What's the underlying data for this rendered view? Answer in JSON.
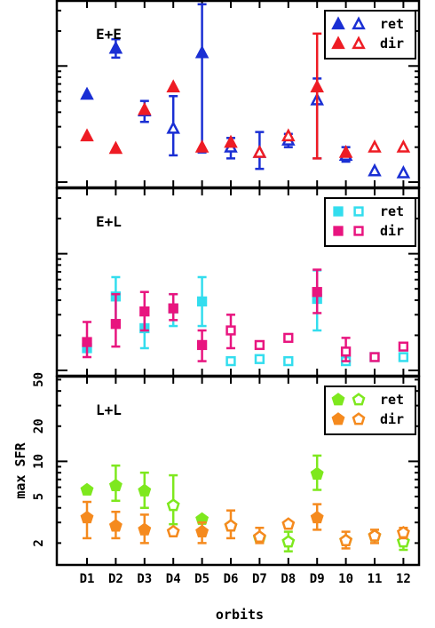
{
  "colors": {
    "ee_ret": "#1a2fd4",
    "ee_dir": "#ee1c24",
    "el_ret": "#33ddee",
    "el_dir": "#e8157f",
    "ll_ret": "#7ee81e",
    "ll_dir": "#f58a1e"
  },
  "chart_data": {
    "type": "scatter",
    "xlabel": "orbits",
    "ylabel": "max SFR",
    "categories": [
      "D1",
      "D2",
      "D3",
      "D4",
      "D5",
      "D6",
      "D7",
      "D8",
      "D9",
      "10",
      "11",
      "12"
    ],
    "y_scale": "log",
    "panels": [
      {
        "title": "E+E",
        "ylim": [
          0.9,
          37
        ],
        "yticks": [],
        "legend": {
          "position": "top-right",
          "entries": [
            "ret",
            "dir"
          ],
          "marker": "triangle"
        },
        "series": [
          {
            "name": "ret",
            "color_key": "ee_ret",
            "points": [
              {
                "x": "D1",
                "y": 5.7,
                "lo": 5.7,
                "hi": 5.7,
                "filled": true
              },
              {
                "x": "D2",
                "y": 14.2,
                "lo": 11.8,
                "hi": 17.0,
                "filled": true
              },
              {
                "x": "D3",
                "y": 4.1,
                "lo": 3.3,
                "hi": 5.0,
                "filled": true
              },
              {
                "x": "D4",
                "y": 2.9,
                "lo": 1.7,
                "hi": 5.5,
                "filled": false
              },
              {
                "x": "D5",
                "y": 13.0,
                "lo": 1.8,
                "hi": 34.0,
                "filled": true
              },
              {
                "x": "D6",
                "y": 2.0,
                "lo": 1.6,
                "hi": 2.4,
                "filled": false
              },
              {
                "x": "D7",
                "y": 1.8,
                "lo": 1.3,
                "hi": 2.7,
                "filled": false
              },
              {
                "x": "D8",
                "y": 2.3,
                "lo": 2.0,
                "hi": 2.6,
                "filled": false
              },
              {
                "x": "D9",
                "y": 5.1,
                "lo": 1.6,
                "hi": 7.8,
                "filled": false
              },
              {
                "x": "10",
                "y": 1.7,
                "lo": 1.5,
                "hi": 2.0,
                "filled": false
              },
              {
                "x": "11",
                "y": 1.25,
                "lo": 1.25,
                "hi": 1.25,
                "filled": false
              },
              {
                "x": "12",
                "y": 1.2,
                "lo": 1.2,
                "hi": 1.2,
                "filled": false
              }
            ]
          },
          {
            "name": "dir",
            "color_key": "ee_dir",
            "points": [
              {
                "x": "D1",
                "y": 2.5,
                "lo": 2.5,
                "hi": 2.5,
                "filled": true
              },
              {
                "x": "D2",
                "y": 1.95,
                "lo": 1.95,
                "hi": 1.95,
                "filled": true
              },
              {
                "x": "D3",
                "y": 4.2,
                "lo": 4.2,
                "hi": 4.2,
                "filled": true
              },
              {
                "x": "D4",
                "y": 6.6,
                "lo": 6.6,
                "hi": 6.6,
                "filled": true
              },
              {
                "x": "D5",
                "y": 2.0,
                "lo": 2.0,
                "hi": 2.0,
                "filled": true
              },
              {
                "x": "D6",
                "y": 2.2,
                "lo": 2.2,
                "hi": 2.2,
                "filled": true
              },
              {
                "x": "D7",
                "y": 1.8,
                "lo": 1.8,
                "hi": 1.8,
                "filled": false
              },
              {
                "x": "D8",
                "y": 2.5,
                "lo": 2.5,
                "hi": 2.5,
                "filled": false
              },
              {
                "x": "D9",
                "y": 6.6,
                "lo": 1.6,
                "hi": 19.0,
                "filled": true
              },
              {
                "x": "10",
                "y": 1.8,
                "lo": 1.8,
                "hi": 1.8,
                "filled": true
              },
              {
                "x": "11",
                "y": 2.0,
                "lo": 2.0,
                "hi": 2.0,
                "filled": false
              },
              {
                "x": "12",
                "y": 2.0,
                "lo": 2.0,
                "hi": 2.0,
                "filled": false
              }
            ]
          }
        ]
      },
      {
        "title": "E+L",
        "ylim": [
          0.9,
          37
        ],
        "yticks": [],
        "legend": {
          "position": "top-right",
          "entries": [
            "ret",
            "dir"
          ],
          "marker": "square"
        },
        "series": [
          {
            "name": "ret",
            "color_key": "el_ret",
            "points": [
              {
                "x": "D1",
                "y": 1.55,
                "lo": 1.55,
                "hi": 1.55,
                "filled": true
              },
              {
                "x": "D2",
                "y": 4.3,
                "lo": 2.7,
                "hi": 6.3,
                "filled": true
              },
              {
                "x": "D3",
                "y": 2.3,
                "lo": 1.55,
                "hi": 3.2,
                "filled": true
              },
              {
                "x": "D4",
                "y": 3.4,
                "lo": 2.4,
                "hi": 4.5,
                "filled": true
              },
              {
                "x": "D5",
                "y": 3.9,
                "lo": 2.4,
                "hi": 6.3,
                "filled": true
              },
              {
                "x": "D6",
                "y": 1.2,
                "lo": 1.2,
                "hi": 1.2,
                "filled": false
              },
              {
                "x": "D7",
                "y": 1.25,
                "lo": 1.25,
                "hi": 1.25,
                "filled": false
              },
              {
                "x": "D8",
                "y": 1.2,
                "lo": 1.2,
                "hi": 1.2,
                "filled": false
              },
              {
                "x": "D9",
                "y": 4.1,
                "lo": 2.2,
                "hi": 7.2,
                "filled": true
              },
              {
                "x": "10",
                "y": 1.2,
                "lo": 1.2,
                "hi": 1.2,
                "filled": false
              },
              {
                "x": "11",
                "y": 1.3,
                "lo": 1.3,
                "hi": 1.3,
                "filled": true
              },
              {
                "x": "12",
                "y": 1.3,
                "lo": 1.3,
                "hi": 1.3,
                "filled": false
              }
            ]
          },
          {
            "name": "dir",
            "color_key": "el_dir",
            "points": [
              {
                "x": "D1",
                "y": 1.75,
                "lo": 1.3,
                "hi": 2.6,
                "filled": true
              },
              {
                "x": "D2",
                "y": 2.5,
                "lo": 1.6,
                "hi": 4.5,
                "filled": true
              },
              {
                "x": "D3",
                "y": 3.2,
                "lo": 2.2,
                "hi": 4.7,
                "filled": true
              },
              {
                "x": "D4",
                "y": 3.4,
                "lo": 2.7,
                "hi": 4.5,
                "filled": true
              },
              {
                "x": "D5",
                "y": 1.65,
                "lo": 1.2,
                "hi": 2.2,
                "filled": true
              },
              {
                "x": "D6",
                "y": 2.2,
                "lo": 1.55,
                "hi": 3.0,
                "filled": false
              },
              {
                "x": "D7",
                "y": 1.65,
                "lo": 1.65,
                "hi": 1.65,
                "filled": false
              },
              {
                "x": "D8",
                "y": 1.9,
                "lo": 1.9,
                "hi": 1.9,
                "filled": false
              },
              {
                "x": "D9",
                "y": 4.7,
                "lo": 3.1,
                "hi": 7.3,
                "filled": true
              },
              {
                "x": "10",
                "y": 1.45,
                "lo": 1.2,
                "hi": 1.9,
                "filled": false
              },
              {
                "x": "11",
                "y": 1.3,
                "lo": 1.3,
                "hi": 1.3,
                "filled": false
              },
              {
                "x": "12",
                "y": 1.6,
                "lo": 1.6,
                "hi": 1.6,
                "filled": false
              }
            ]
          }
        ]
      },
      {
        "title": "L+L",
        "ylim": [
          1.3,
          54
        ],
        "yticks": [
          2,
          5,
          10,
          20,
          50
        ],
        "legend": {
          "position": "top-right",
          "entries": [
            "ret",
            "dir"
          ],
          "marker": "pentagon"
        },
        "series": [
          {
            "name": "ret",
            "color_key": "ll_ret",
            "points": [
              {
                "x": "D1",
                "y": 5.7,
                "lo": 5.7,
                "hi": 5.7,
                "filled": true
              },
              {
                "x": "D2",
                "y": 6.2,
                "lo": 4.6,
                "hi": 9.2,
                "filled": true
              },
              {
                "x": "D3",
                "y": 5.6,
                "lo": 4.0,
                "hi": 8.0,
                "filled": true
              },
              {
                "x": "D4",
                "y": 4.2,
                "lo": 2.9,
                "hi": 7.6,
                "filled": false
              },
              {
                "x": "D5",
                "y": 3.2,
                "lo": 3.2,
                "hi": 3.2,
                "filled": true
              },
              {
                "x": "D6",
                "y": 2.8,
                "lo": 2.8,
                "hi": 2.8,
                "filled": false
              },
              {
                "x": "D7",
                "y": 2.2,
                "lo": 2.2,
                "hi": 2.2,
                "filled": false
              },
              {
                "x": "D8",
                "y": 2.05,
                "lo": 1.7,
                "hi": 2.5,
                "filled": false
              },
              {
                "x": "D9",
                "y": 7.8,
                "lo": 5.7,
                "hi": 11.2,
                "filled": true
              },
              {
                "x": "10",
                "y": 2.1,
                "lo": 2.1,
                "hi": 2.1,
                "filled": false
              },
              {
                "x": "11",
                "y": 2.3,
                "lo": 2.3,
                "hi": 2.3,
                "filled": false
              },
              {
                "x": "12",
                "y": 2.05,
                "lo": 1.75,
                "hi": 2.45,
                "filled": false
              }
            ]
          },
          {
            "name": "dir",
            "color_key": "ll_dir",
            "points": [
              {
                "x": "D1",
                "y": 3.3,
                "lo": 2.2,
                "hi": 4.5,
                "filled": true
              },
              {
                "x": "D2",
                "y": 2.8,
                "lo": 2.2,
                "hi": 3.7,
                "filled": true
              },
              {
                "x": "D3",
                "y": 2.6,
                "lo": 2.0,
                "hi": 3.5,
                "filled": true
              },
              {
                "x": "D4",
                "y": 2.5,
                "lo": 2.5,
                "hi": 2.5,
                "filled": false
              },
              {
                "x": "D5",
                "y": 2.5,
                "lo": 2.0,
                "hi": 3.0,
                "filled": true
              },
              {
                "x": "D6",
                "y": 2.8,
                "lo": 2.2,
                "hi": 3.8,
                "filled": false
              },
              {
                "x": "D7",
                "y": 2.25,
                "lo": 2.0,
                "hi": 2.7,
                "filled": false
              },
              {
                "x": "D8",
                "y": 2.9,
                "lo": 2.9,
                "hi": 2.9,
                "filled": false
              },
              {
                "x": "D9",
                "y": 3.3,
                "lo": 2.6,
                "hi": 4.3,
                "filled": true
              },
              {
                "x": "10",
                "y": 2.1,
                "lo": 1.8,
                "hi": 2.5,
                "filled": false
              },
              {
                "x": "11",
                "y": 2.3,
                "lo": 2.0,
                "hi": 2.6,
                "filled": false
              },
              {
                "x": "12",
                "y": 2.45,
                "lo": 2.2,
                "hi": 2.7,
                "filled": false
              }
            ]
          }
        ]
      }
    ]
  }
}
